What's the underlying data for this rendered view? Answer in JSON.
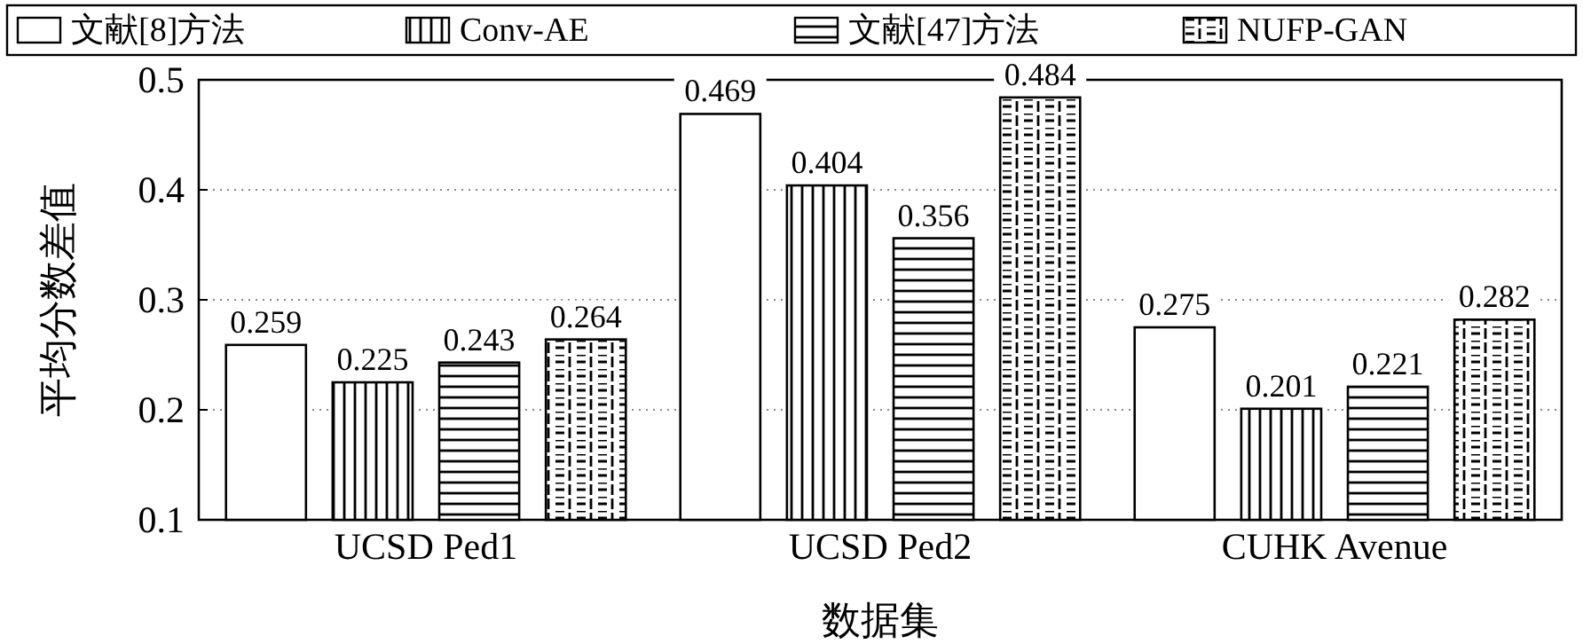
{
  "chart_data": {
    "type": "bar",
    "xlabel": "数据集",
    "ylabel": "平均分数差值",
    "categories": [
      "UCSD Ped1",
      "UCSD Ped2",
      "CUHK Avenue"
    ],
    "series": [
      {
        "name": "文献[8]方法",
        "color": "#000000",
        "values": [
          0.259,
          0.469,
          0.275
        ]
      },
      {
        "name": "Conv-AE",
        "color": "#000000",
        "values": [
          0.225,
          0.404,
          0.201
        ]
      },
      {
        "name": "文献[47]方法",
        "color": "#000000",
        "values": [
          0.243,
          0.356,
          0.221
        ]
      },
      {
        "name": "NUFP-GAN",
        "color": "#000000",
        "values": [
          0.264,
          0.484,
          0.282
        ]
      }
    ],
    "ylim": [
      0.1,
      0.5
    ],
    "yticks": [
      0.1,
      0.2,
      0.3,
      0.4,
      0.5
    ],
    "grid": "y",
    "legend": "top",
    "data_labels": true
  }
}
